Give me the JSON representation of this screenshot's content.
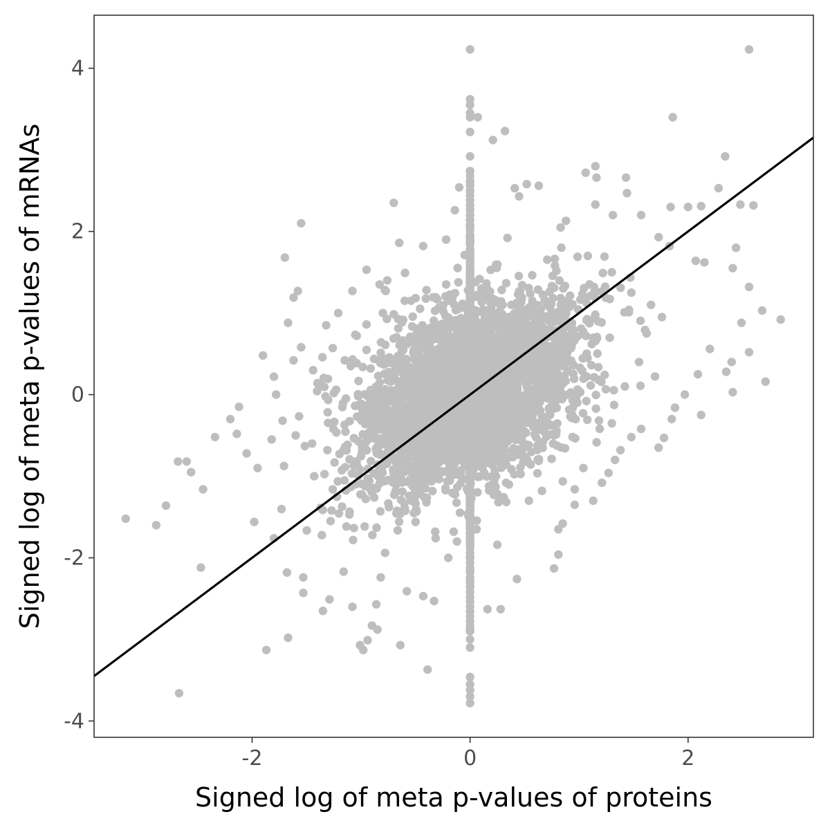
{
  "chart_data": {
    "type": "scatter",
    "xlabel": "Signed log of meta p-values of proteins",
    "ylabel": "Signed log of meta p-values of mRNAs",
    "xlim": [
      -3.45,
      3.15
    ],
    "ylim": [
      -4.2,
      4.65
    ],
    "x_ticks": [
      -2,
      0,
      2
    ],
    "x_tick_labels": [
      "-2",
      "0",
      "2"
    ],
    "y_ticks": [
      -4,
      -2,
      0,
      2,
      4
    ],
    "y_tick_labels": [
      "-4",
      "-2",
      "0",
      "2",
      "4"
    ],
    "grid": false,
    "legend": "none",
    "point_color": "#bebebe",
    "line_color": "#000000",
    "fit_line": {
      "slope": 1.0,
      "intercept": 0.0
    },
    "outliers": [
      {
        "x": -3.16,
        "y": -1.52
      },
      {
        "x": -2.88,
        "y": -1.6
      },
      {
        "x": -2.79,
        "y": -1.36
      },
      {
        "x": -2.68,
        "y": -0.82
      },
      {
        "x": -2.6,
        "y": -0.82
      },
      {
        "x": -2.56,
        "y": -0.95
      },
      {
        "x": -2.45,
        "y": -1.16
      },
      {
        "x": -2.47,
        "y": -2.12
      },
      {
        "x": -2.67,
        "y": -3.66
      },
      {
        "x": -2.34,
        "y": -0.52
      },
      {
        "x": -2.2,
        "y": -0.3
      },
      {
        "x": -2.14,
        "y": -0.48
      },
      {
        "x": -2.12,
        "y": -0.15
      },
      {
        "x": -2.05,
        "y": -0.72
      },
      {
        "x": -1.98,
        "y": -1.56
      },
      {
        "x": -1.95,
        "y": -0.9
      },
      {
        "x": -1.9,
        "y": 0.48
      },
      {
        "x": -1.82,
        "y": -0.55
      },
      {
        "x": -1.8,
        "y": -1.76
      },
      {
        "x": -1.87,
        "y": -3.13
      },
      {
        "x": -1.68,
        "y": -2.18
      },
      {
        "x": -1.67,
        "y": -2.98
      },
      {
        "x": -1.67,
        "y": 0.88
      },
      {
        "x": -1.7,
        "y": 1.68
      },
      {
        "x": -1.62,
        "y": 1.19
      },
      {
        "x": -1.58,
        "y": 1.27
      },
      {
        "x": -1.55,
        "y": 2.1
      },
      {
        "x": -1.55,
        "y": 0.58
      },
      {
        "x": -1.53,
        "y": -2.24
      },
      {
        "x": -1.53,
        "y": -2.43
      },
      {
        "x": -1.43,
        "y": -1.0
      },
      {
        "x": -1.35,
        "y": -2.65
      },
      {
        "x": -1.32,
        "y": 0.85
      },
      {
        "x": -1.29,
        "y": -2.51
      },
      {
        "x": -1.28,
        "y": -1.55
      },
      {
        "x": -1.26,
        "y": 0.57
      },
      {
        "x": -1.21,
        "y": 1.0
      },
      {
        "x": -1.16,
        "y": -2.17
      },
      {
        "x": -1.08,
        "y": 1.27
      },
      {
        "x": -1.08,
        "y": -2.6
      },
      {
        "x": -1.01,
        "y": -3.07
      },
      {
        "x": -0.98,
        "y": -3.13
      },
      {
        "x": -0.94,
        "y": -3.01
      },
      {
        "x": -0.9,
        "y": -2.83
      },
      {
        "x": -0.85,
        "y": -2.88
      },
      {
        "x": -0.86,
        "y": -2.57
      },
      {
        "x": -0.82,
        "y": -2.24
      },
      {
        "x": -0.78,
        "y": -1.94
      },
      {
        "x": -0.64,
        "y": -3.07
      },
      {
        "x": -0.58,
        "y": -2.41
      },
      {
        "x": -0.43,
        "y": -2.47
      },
      {
        "x": -0.39,
        "y": -3.37
      },
      {
        "x": -0.33,
        "y": -2.53
      },
      {
        "x": -0.76,
        "y": 1.4
      },
      {
        "x": -0.83,
        "y": 1.35
      },
      {
        "x": -0.95,
        "y": 1.53
      },
      {
        "x": -0.7,
        "y": 2.35
      },
      {
        "x": -0.65,
        "y": 1.86
      },
      {
        "x": -0.43,
        "y": 1.82
      },
      {
        "x": -0.22,
        "y": 1.9
      },
      {
        "x": -0.14,
        "y": 2.26
      },
      {
        "x": -0.1,
        "y": 2.54
      },
      {
        "x": -0.05,
        "y": 1.71
      },
      {
        "x": 0.07,
        "y": 3.4
      },
      {
        "x": 0.21,
        "y": 3.12
      },
      {
        "x": 0.32,
        "y": 3.23
      },
      {
        "x": 0.41,
        "y": 2.53
      },
      {
        "x": 0.45,
        "y": 2.43
      },
      {
        "x": 0.52,
        "y": 2.58
      },
      {
        "x": 0.63,
        "y": 2.56
      },
      {
        "x": 0.88,
        "y": 2.13
      },
      {
        "x": 1.06,
        "y": 2.72
      },
      {
        "x": 1.15,
        "y": 2.8
      },
      {
        "x": 1.16,
        "y": 2.66
      },
      {
        "x": 1.15,
        "y": 2.33
      },
      {
        "x": 1.31,
        "y": 2.2
      },
      {
        "x": 1.43,
        "y": 2.66
      },
      {
        "x": 1.44,
        "y": 2.47
      },
      {
        "x": 1.57,
        "y": 2.2
      },
      {
        "x": 1.84,
        "y": 2.3
      },
      {
        "x": 1.86,
        "y": 3.4
      },
      {
        "x": 2.0,
        "y": 2.3
      },
      {
        "x": 2.12,
        "y": 2.31
      },
      {
        "x": 2.28,
        "y": 2.53
      },
      {
        "x": 2.34,
        "y": 2.92
      },
      {
        "x": 2.48,
        "y": 2.33
      },
      {
        "x": 2.56,
        "y": 4.23
      },
      {
        "x": 2.6,
        "y": 2.32
      },
      {
        "x": 2.44,
        "y": 1.8
      },
      {
        "x": 2.41,
        "y": 1.55
      },
      {
        "x": 2.56,
        "y": 1.32
      },
      {
        "x": 2.68,
        "y": 1.03
      },
      {
        "x": 2.85,
        "y": 0.92
      },
      {
        "x": 2.71,
        "y": 0.16
      },
      {
        "x": 2.56,
        "y": 0.52
      },
      {
        "x": 2.49,
        "y": 0.88
      },
      {
        "x": 2.4,
        "y": 0.4
      },
      {
        "x": 2.41,
        "y": 0.03
      },
      {
        "x": 2.35,
        "y": 0.28
      },
      {
        "x": 2.2,
        "y": 0.56
      },
      {
        "x": 2.15,
        "y": 1.62
      },
      {
        "x": 2.07,
        "y": 1.64
      },
      {
        "x": 2.09,
        "y": 0.25
      },
      {
        "x": 2.12,
        "y": -0.25
      },
      {
        "x": 1.97,
        "y": 0.0
      },
      {
        "x": 1.83,
        "y": 1.82
      },
      {
        "x": 1.88,
        "y": -0.16
      },
      {
        "x": 1.78,
        "y": -0.53
      },
      {
        "x": 1.73,
        "y": -0.65
      },
      {
        "x": 1.73,
        "y": 1.93
      },
      {
        "x": 1.85,
        "y": -0.3
      },
      {
        "x": 1.57,
        "y": -0.42
      },
      {
        "x": 1.48,
        "y": -0.52
      },
      {
        "x": 1.38,
        "y": -0.68
      },
      {
        "x": 1.33,
        "y": -0.8
      },
      {
        "x": 1.27,
        "y": -0.96
      },
      {
        "x": 1.21,
        "y": -1.08
      },
      {
        "x": 1.13,
        "y": -1.3
      },
      {
        "x": 0.96,
        "y": -1.35
      },
      {
        "x": 0.85,
        "y": -1.58
      },
      {
        "x": 0.81,
        "y": -1.65
      },
      {
        "x": 0.81,
        "y": -1.96
      },
      {
        "x": 0.77,
        "y": -2.13
      },
      {
        "x": 0.43,
        "y": -2.26
      },
      {
        "x": 0.28,
        "y": -2.63
      },
      {
        "x": 0.16,
        "y": -2.63
      },
      {
        "x": 0.25,
        "y": -1.84
      },
      {
        "x": 0.54,
        "y": -1.3
      },
      {
        "x": 0.66,
        "y": -1.18
      },
      {
        "x": 0.96,
        "y": -1.16
      },
      {
        "x": 1.04,
        "y": -0.9
      },
      {
        "x": 0.77,
        "y": -0.5
      },
      {
        "x": 0.06,
        "y": -1.65
      },
      {
        "x": -0.12,
        "y": -1.8
      },
      {
        "x": -0.2,
        "y": -2.0
      },
      {
        "x": -0.32,
        "y": -1.68
      },
      {
        "x": -0.5,
        "y": -1.56
      },
      {
        "x": -0.64,
        "y": -1.46
      },
      {
        "x": -0.88,
        "y": -1.26
      },
      {
        "x": -1.05,
        "y": -1.1
      },
      {
        "x": -1.26,
        "y": -1.16
      },
      {
        "x": -1.45,
        "y": -0.6
      },
      {
        "x": -1.6,
        "y": -0.5
      },
      {
        "x": -1.72,
        "y": -0.32
      },
      {
        "x": -1.78,
        "y": 0.0
      },
      {
        "x": -1.8,
        "y": 0.22
      },
      {
        "x": -1.62,
        "y": 0.42
      },
      {
        "x": -1.44,
        "y": 0.3
      },
      {
        "x": -1.4,
        "y": 0.14
      },
      {
        "x": -1.25,
        "y": 0.02
      },
      {
        "x": -1.15,
        "y": 0.42
      },
      {
        "x": -1.04,
        "y": 0.72
      },
      {
        "x": -0.95,
        "y": 0.86
      },
      {
        "x": -0.8,
        "y": 1.0
      },
      {
        "x": -0.6,
        "y": 1.15
      },
      {
        "x": -0.4,
        "y": 1.28
      },
      {
        "x": -0.22,
        "y": 1.35
      },
      {
        "x": 1.08,
        "y": 1.7
      },
      {
        "x": 1.3,
        "y": 1.5
      },
      {
        "x": 1.48,
        "y": 1.25
      },
      {
        "x": 1.66,
        "y": 1.1
      },
      {
        "x": 1.76,
        "y": 0.95
      },
      {
        "x": 1.62,
        "y": 0.75
      },
      {
        "x": 1.55,
        "y": 0.4
      },
      {
        "x": 1.42,
        "y": 0.1
      }
    ],
    "bulk_cloud": {
      "n": 3600,
      "center": [
        0.0,
        0.0
      ],
      "sd_x": 0.5,
      "sd_y": 0.58,
      "correlation": 0.45
    },
    "zero_x_column": {
      "x": 0,
      "y_range": [
        -3.78,
        4.23
      ],
      "extra_points_y": [
        3.62,
        3.55,
        3.45,
        3.4,
        3.22,
        2.92,
        2.74,
        2.6,
        -3.46,
        -3.55,
        -3.62,
        -3.7,
        -3.78,
        -3.1,
        -3.0,
        -2.88
      ]
    }
  }
}
